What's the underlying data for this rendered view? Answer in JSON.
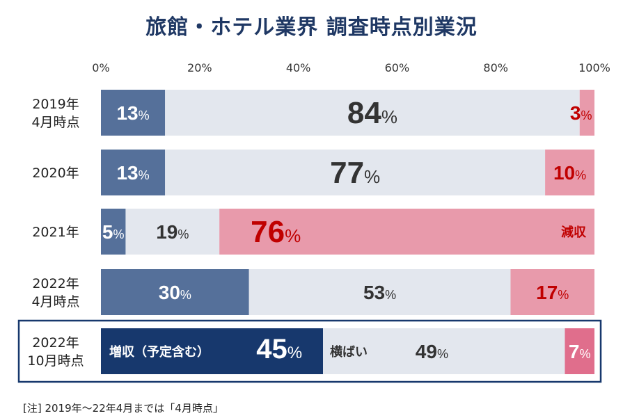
{
  "title": "旅館・ホテル業界 調査時点別業況",
  "chart_data": {
    "type": "bar",
    "orientation": "horizontal",
    "stacked": true,
    "xlim": [
      0,
      100
    ],
    "xticks": [
      "0%",
      "20%",
      "40%",
      "60%",
      "80%",
      "100%"
    ],
    "categories": [
      [
        "2019年",
        "4月時点"
      ],
      [
        "2020年"
      ],
      [
        "2021年"
      ],
      [
        "2022年",
        "4月時点"
      ],
      [
        "2022年",
        "10月時点"
      ]
    ],
    "series": [
      {
        "values": [
          13,
          13,
          5,
          30,
          45
        ],
        "color": "#55709a",
        "label_color": "#ffffff",
        "highlight_color": "#17386d"
      },
      {
        "values": [
          84,
          77,
          19,
          53,
          49
        ],
        "color": "#e3e7ee",
        "label_color": "#333333"
      },
      {
        "values": [
          3,
          10,
          76,
          17,
          7
        ],
        "color": "#e89aab",
        "label_color": "#c00000",
        "highlight_color": "#e06e8c",
        "highlight_label_color": "#ffffff"
      }
    ],
    "annotations": [
      {
        "row": 2,
        "series": 2,
        "text": "減収"
      },
      {
        "row": 4,
        "series": 0,
        "text": "増収（予定含む）"
      },
      {
        "row": 4,
        "series": 1,
        "text": "横ばい"
      }
    ],
    "highlight_row": 4,
    "grid": false,
    "legend": "none"
  },
  "note": "[注]  2019年～22年4月までは「4月時点」"
}
